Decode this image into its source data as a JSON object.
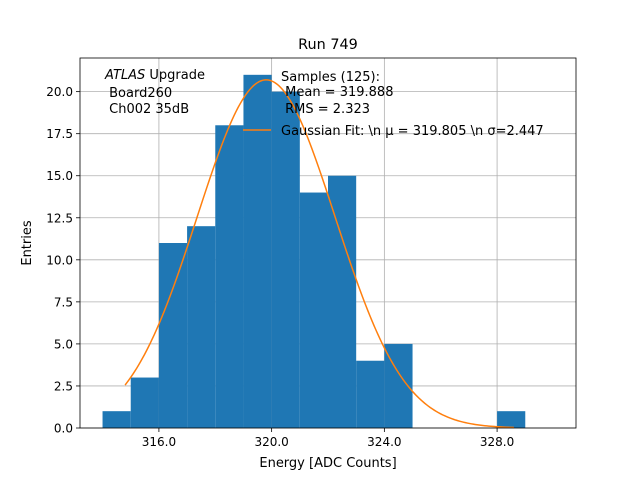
{
  "chart_data": {
    "type": "bar",
    "title": "Run 749",
    "xlabel": "Energy [ADC Counts]",
    "ylabel": "Entries",
    "xlim": [
      313.2,
      330.8
    ],
    "ylim": [
      0,
      22.0
    ],
    "grid": true,
    "xticks": [
      316.0,
      320.0,
      324.0,
      328.0
    ],
    "xtick_labels": [
      "316.0",
      "320.0",
      "324.0",
      "328.0"
    ],
    "yticks": [
      0.0,
      2.5,
      5.0,
      7.5,
      10.0,
      12.5,
      15.0,
      17.5,
      20.0
    ],
    "ytick_labels": [
      "0.0",
      "2.5",
      "5.0",
      "7.5",
      "10.0",
      "12.5",
      "15.0",
      "17.5",
      "20.0"
    ],
    "bars": [
      {
        "x0": 314,
        "x1": 315,
        "value": 1
      },
      {
        "x0": 315,
        "x1": 316,
        "value": 3
      },
      {
        "x0": 316,
        "x1": 317,
        "value": 11
      },
      {
        "x0": 317,
        "x1": 318,
        "value": 12
      },
      {
        "x0": 318,
        "x1": 319,
        "value": 18
      },
      {
        "x0": 319,
        "x1": 320,
        "value": 21
      },
      {
        "x0": 320,
        "x1": 321,
        "value": 20
      },
      {
        "x0": 321,
        "x1": 322,
        "value": 14
      },
      {
        "x0": 322,
        "x1": 323,
        "value": 15
      },
      {
        "x0": 323,
        "x1": 324,
        "value": 4
      },
      {
        "x0": 324,
        "x1": 325,
        "value": 5
      },
      {
        "x0": 328,
        "x1": 329,
        "value": 1
      }
    ],
    "fit": {
      "mu": 319.805,
      "sigma": 2.447,
      "amplitude": 20.7,
      "x_range": [
        314.8,
        328.6
      ]
    },
    "bar_color": "#1f77b4",
    "fit_color": "#ff7f0e",
    "annotation": {
      "italic": "ATLAS",
      "rest": " Upgrade",
      "line2": " Board260",
      "line3": " Ch002 35dB"
    },
    "legend": {
      "placement": "top-right",
      "samples_lines": [
        "Samples (125):",
        " Mean = 319.888",
        " RMS = 2.323"
      ],
      "fit_label": "Gaussian Fit: \\n μ = 319.805 \\n σ=2.447"
    }
  }
}
